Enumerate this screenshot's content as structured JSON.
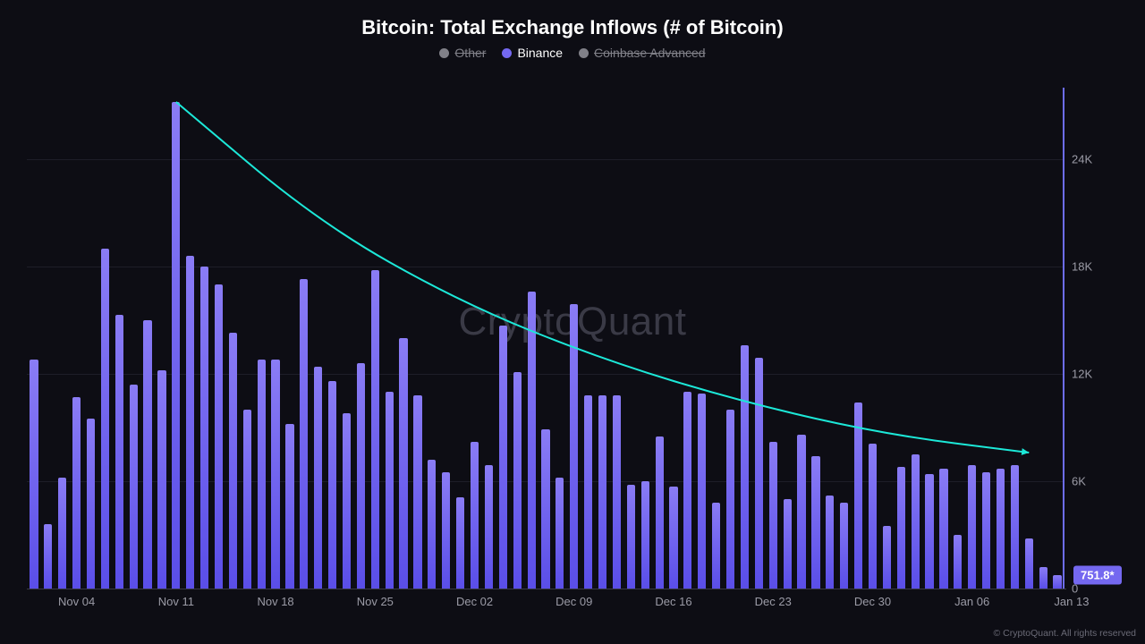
{
  "title": "Bitcoin: Total Exchange Inflows (# of Bitcoin)",
  "legend": [
    {
      "label": "Other",
      "color": "#808088",
      "textColor": "#808088",
      "strike": true
    },
    {
      "label": "Binance",
      "color": "#7468f0",
      "textColor": "#ffffff",
      "strike": false
    },
    {
      "label": "Coinbase Advanced",
      "color": "#808088",
      "textColor": "#808088",
      "strike": true
    }
  ],
  "watermark": "CryptoQuant",
  "copyright": "© CryptoQuant. All rights reserved",
  "chart": {
    "type": "bar",
    "background": "#0d0d14",
    "bar_gradient_top": "#8a7cf5",
    "bar_gradient_bottom": "#5a4ee8",
    "grid_color": "#1e1e28",
    "axis_text_color": "#9b9ba6",
    "axis_line_color": "#6c6cf0",
    "trend_color": "#1ce8d8",
    "y": {
      "min": 0,
      "max": 28000,
      "ticks": [
        0,
        6000,
        12000,
        18000,
        24000
      ],
      "tick_labels": [
        "0",
        "6K",
        "12K",
        "18K",
        "24K"
      ]
    },
    "x_ticks": [
      {
        "label": "Nov 04",
        "index": 3
      },
      {
        "label": "Nov 11",
        "index": 10
      },
      {
        "label": "Nov 18",
        "index": 17
      },
      {
        "label": "Nov 25",
        "index": 24
      },
      {
        "label": "Dec 02",
        "index": 31
      },
      {
        "label": "Dec 09",
        "index": 38
      },
      {
        "label": "Dec 16",
        "index": 45
      },
      {
        "label": "Dec 23",
        "index": 52
      },
      {
        "label": "Dec 30",
        "index": 59
      },
      {
        "label": "Jan 06",
        "index": 66
      },
      {
        "label": "Jan 13",
        "index": 73
      }
    ],
    "values": [
      12800,
      3600,
      6200,
      10700,
      9500,
      19000,
      15300,
      11400,
      15000,
      12200,
      27200,
      18600,
      18000,
      17000,
      14300,
      10000,
      12800,
      12800,
      9200,
      17300,
      12400,
      11600,
      9800,
      12600,
      17800,
      11000,
      14000,
      10800,
      7200,
      6500,
      5100,
      8200,
      6900,
      14700,
      12100,
      16600,
      8900,
      6200,
      15900,
      10800,
      10800,
      10800,
      5800,
      6000,
      8500,
      5700,
      11000,
      10900,
      4800,
      10000,
      13600,
      12900,
      8200,
      5000,
      8600,
      7400,
      5200,
      4800,
      10400,
      8100,
      3500,
      6800,
      7500,
      6400,
      6700,
      3000,
      6900,
      6500,
      6700,
      6900,
      2800,
      1200,
      751.8
    ],
    "bar_width_ratio": 0.58,
    "current_value_label": "751.8*",
    "current_value_badge_color": "#7468f0",
    "trend_curve": [
      {
        "x": 10,
        "y": 27200
      },
      {
        "x": 20,
        "y": 20500
      },
      {
        "x": 30,
        "y": 16000
      },
      {
        "x": 40,
        "y": 12800
      },
      {
        "x": 50,
        "y": 10400
      },
      {
        "x": 60,
        "y": 8600
      },
      {
        "x": 70,
        "y": 7600
      }
    ],
    "trend_stroke_width": 2,
    "title_fontsize": 22,
    "title_weight": 700,
    "legend_fontsize": 14,
    "axis_fontsize": 13,
    "watermark_fontsize": 44,
    "watermark_color": "#3a3a46"
  }
}
